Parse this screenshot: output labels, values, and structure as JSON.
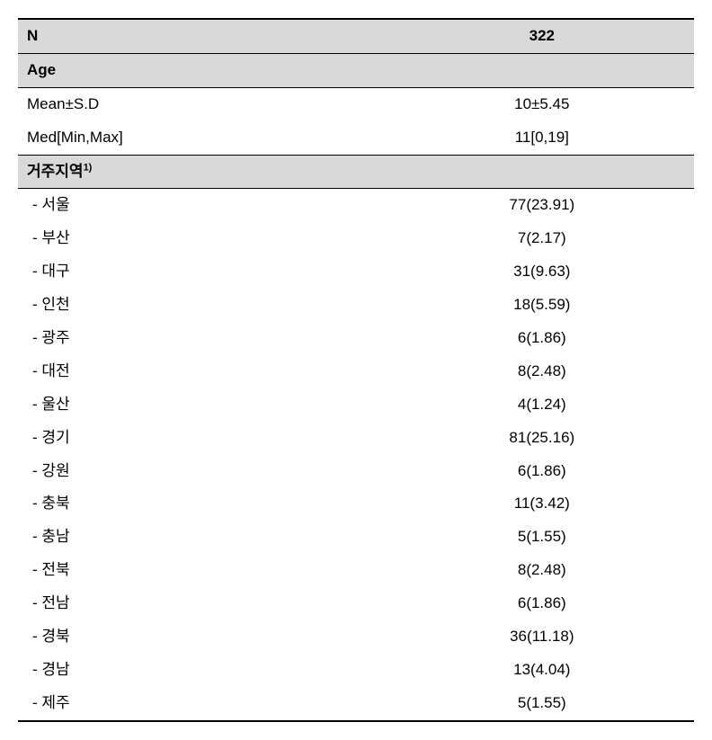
{
  "header": {
    "n_label": "N",
    "n_value": "322"
  },
  "sections": [
    {
      "title": "Age",
      "superscript": "",
      "rows": [
        {
          "label": "Mean±S.D",
          "value": "10±5.45",
          "indent": false
        },
        {
          "label": "Med[Min,Max]",
          "value": "11[0,19]",
          "indent": false
        }
      ]
    },
    {
      "title": "거주지역",
      "superscript": "1)",
      "rows": [
        {
          "label": "-  서울",
          "value": "77(23.91)",
          "indent": true
        },
        {
          "label": "-  부산",
          "value": "7(2.17)",
          "indent": true
        },
        {
          "label": "-  대구",
          "value": "31(9.63)",
          "indent": true
        },
        {
          "label": "-  인천",
          "value": "18(5.59)",
          "indent": true
        },
        {
          "label": "-  광주",
          "value": "6(1.86)",
          "indent": true
        },
        {
          "label": "-  대전",
          "value": "8(2.48)",
          "indent": true
        },
        {
          "label": "-  울산",
          "value": "4(1.24)",
          "indent": true
        },
        {
          "label": "-  경기",
          "value": "81(25.16)",
          "indent": true
        },
        {
          "label": "-  강원",
          "value": "6(1.86)",
          "indent": true
        },
        {
          "label": "-  충북",
          "value": "11(3.42)",
          "indent": true
        },
        {
          "label": "-  충남",
          "value": "5(1.55)",
          "indent": true
        },
        {
          "label": "-  전북",
          "value": "8(2.48)",
          "indent": true
        },
        {
          "label": "-  전남",
          "value": "6(1.86)",
          "indent": true
        },
        {
          "label": "-  경북",
          "value": "36(11.18)",
          "indent": true
        },
        {
          "label": "-  경남",
          "value": "13(4.04)",
          "indent": true
        },
        {
          "label": "-  제주",
          "value": "5(1.55)",
          "indent": true
        }
      ]
    }
  ],
  "styling": {
    "header_bg": "#d9d9d9",
    "data_bg": "#ffffff",
    "border_color": "#000000",
    "font_size": 17,
    "superscript_size": 11
  }
}
